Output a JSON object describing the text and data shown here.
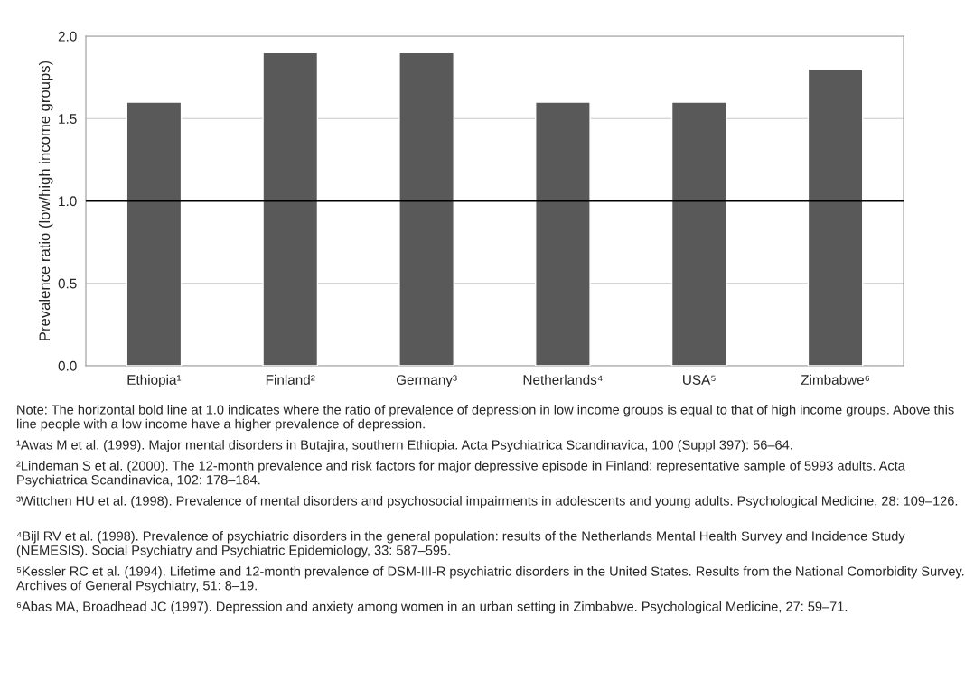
{
  "chart_data": {
    "type": "bar",
    "ylabel": "Prevalence ratio (low/high income groups)",
    "categories": [
      "Ethiopia¹",
      "Finland²",
      "Germany³",
      "Netherlands⁴",
      "USA⁵",
      "Zimbabwe⁶"
    ],
    "values": [
      1.6,
      1.9,
      1.9,
      1.6,
      1.6,
      1.8
    ],
    "color": "#595959",
    "ylim": [
      0,
      2.0
    ],
    "yticks": [
      {
        "value": 0,
        "label": "0.0"
      },
      {
        "value": 0.5,
        "label": "0.5"
      },
      {
        "value": 1.0,
        "label": "1.0"
      },
      {
        "value": 1.5,
        "label": "1.5"
      },
      {
        "value": 2.0,
        "label": "2.0"
      }
    ],
    "grid": "y",
    "ref_lines": [
      {
        "axis": "y",
        "value": 1.0,
        "color": "#000000",
        "line_style": "solid"
      }
    ],
    "annotations": [
      "Note: The horizontal bold line at 1.0 indicates where the ratio of prevalence of depression in low income groups is equal to that of high income groups. Above this line people with a low income have a higher prevalence of depression.",
      "¹Awas M et al. (1999). Major mental disorders in Butajira, southern Ethiopia. Acta Psychiatrica Scandinavica, 100 (Suppl 397): 56–64.",
      "²Lindeman S et al. (2000). The 12-month prevalence and risk factors for major depressive episode in Finland: representative sample of 5993 adults. Acta Psychiatrica Scandinavica, 102: 178–184.",
      "³Wittchen HU et al. (1998). Prevalence of mental disorders and psychosocial impairments in adolescents and young adults. Psychological Medicine, 28: 109–126.",
      "⁴Bijl RV et al. (1998). Prevalence of psychiatric disorders in the general population: results of the Netherlands Mental Health Survey and Incidence Study (NEMESIS). Social Psychiatry and Psychiatric Epidemiology, 33: 587–595.",
      "⁵Kessler RC et al. (1994). Lifetime and 12-month prevalence of DSM-III-R psychiatric disorders in the United States. Results from the National Comorbidity Survey. Archives of General Psychiatry, 51: 8–19.",
      "⁶Abas MA, Broadhead JC (1997). Depression and anxiety among women in an urban setting in Zimbabwe. Psychological Medicine, 27: 59–71."
    ]
  }
}
